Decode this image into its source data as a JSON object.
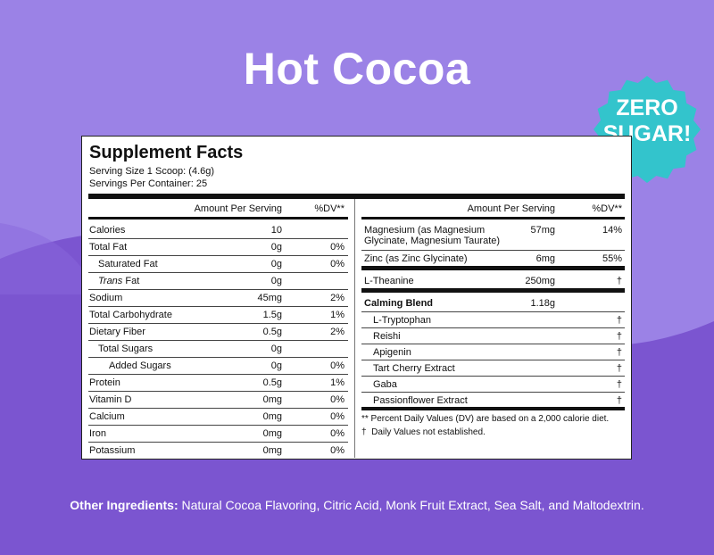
{
  "title": "Hot Cocoa",
  "badge": {
    "line1": "ZERO",
    "line2": "SUGAR!"
  },
  "facts": {
    "heading": "Supplement Facts",
    "serving_size": "Serving Size 1 Scoop: (4.6g)",
    "servings_per_container": "Servings Per Container: 25",
    "left_header": {
      "amount": "Amount Per Serving",
      "dv": "%DV**"
    },
    "right_header": {
      "amount": "Amount Per Serving",
      "dv": "%DV**"
    },
    "left_rows": [
      {
        "name": "Calories",
        "amount": "10",
        "dv": ""
      },
      {
        "name": "Total Fat",
        "amount": "0g",
        "dv": "0%"
      },
      {
        "name": "Saturated Fat",
        "amount": "0g",
        "dv": "0%"
      },
      {
        "name_italic": "Trans",
        "name": " Fat",
        "amount": "0g",
        "dv": ""
      },
      {
        "name": "Sodium",
        "amount": "45mg",
        "dv": "2%"
      },
      {
        "name": "Total Carbohydrate",
        "amount": "1.5g",
        "dv": "1%"
      },
      {
        "name": "Dietary Fiber",
        "amount": "0.5g",
        "dv": "2%"
      },
      {
        "name": "Total Sugars",
        "amount": "0g",
        "dv": ""
      },
      {
        "name": "Added Sugars",
        "amount": "0g",
        "dv": "0%"
      },
      {
        "name": "Protein",
        "amount": "0.5g",
        "dv": "1%"
      },
      {
        "name": "Vitamin D",
        "amount": "0mg",
        "dv": "0%"
      },
      {
        "name": "Calcium",
        "amount": "0mg",
        "dv": "0%"
      },
      {
        "name": "Iron",
        "amount": "0mg",
        "dv": "0%"
      },
      {
        "name": "Potassium",
        "amount": "0mg",
        "dv": "0%"
      }
    ],
    "right_rows": [
      {
        "name": "Magnesium (as Magnesium",
        "name2": "Glycinate, Magnesium Taurate)",
        "amount": "57mg",
        "dv": "14%"
      },
      {
        "name": "Zinc (as Zinc Glycinate)",
        "amount": "6mg",
        "dv": "55%"
      },
      {
        "name": "L-Theanine",
        "amount": "250mg",
        "dv": "†"
      },
      {
        "name": "Calming Blend",
        "amount": "1.18g",
        "dv": ""
      },
      {
        "name": "L-Tryptophan",
        "amount": "",
        "dv": "†"
      },
      {
        "name": "Reishi",
        "amount": "",
        "dv": "†"
      },
      {
        "name": "Apigenin",
        "amount": "",
        "dv": "†"
      },
      {
        "name": "Tart Cherry Extract",
        "amount": "",
        "dv": "†"
      },
      {
        "name": "Gaba",
        "amount": "",
        "dv": "†"
      },
      {
        "name": "Passionflower Extract",
        "amount": "",
        "dv": "†"
      }
    ],
    "note1": "** Percent Daily Values (DV) are based on a 2,000 calorie diet.",
    "note2_mark": "†",
    "note2": "Daily Values not established."
  },
  "footer": {
    "label": "Other Ingredients:",
    "text": " Natural Cocoa Flavoring, Citric Acid, Monk Fruit Extract, Sea Salt, and Maltodextrin."
  },
  "colors": {
    "background": "#9b82e6",
    "wave": "#7b55d0",
    "badge": "#33c4cc",
    "text": "#ffffff"
  }
}
